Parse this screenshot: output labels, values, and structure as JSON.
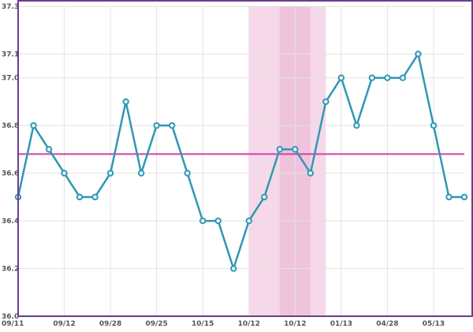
{
  "chart_data": {
    "type": "line",
    "title": "",
    "xlabel": "",
    "ylabel": "",
    "ylim": [
      36.0,
      37.3
    ],
    "yticks": [
      "36.0",
      "36.2",
      "36.4",
      "36.6",
      "36.8",
      "37.0",
      "37.1",
      "37.3"
    ],
    "ytick_values": [
      36.0,
      36.2,
      36.4,
      36.6,
      36.8,
      37.0,
      37.1,
      37.3
    ],
    "xticks": [
      {
        "label": "09/11",
        "index": 0
      },
      {
        "label": "09/12",
        "index": 3
      },
      {
        "label": "09/28",
        "index": 6
      },
      {
        "label": "09/25",
        "index": 9
      },
      {
        "label": "10/15",
        "index": 12
      },
      {
        "label": "10/12",
        "index": 15
      },
      {
        "label": "10/12",
        "index": 18
      },
      {
        "label": "01/13",
        "index": 21
      },
      {
        "label": "04/28",
        "index": 24
      },
      {
        "label": "05/13",
        "index": 27
      }
    ],
    "grid": true,
    "series": [
      {
        "color": "#2f97b5",
        "values": [
          36.5,
          36.8,
          36.7,
          36.6,
          36.5,
          36.5,
          36.6,
          36.9,
          36.6,
          36.8,
          36.8,
          36.6,
          36.4,
          36.4,
          36.2,
          36.4,
          36.5,
          36.7,
          36.7,
          36.6,
          36.9,
          37.0,
          36.8,
          37.0,
          37.0,
          37.0,
          37.1,
          36.8,
          36.5,
          36.5
        ]
      }
    ],
    "reference_line": {
      "value": 36.68,
      "color": "#d63fa3"
    },
    "shaded_bands": [
      {
        "from": 15,
        "to": 20,
        "color": "#f5d9e8"
      },
      {
        "from": 17,
        "to": 19,
        "color": "#efc3dc"
      }
    ],
    "frame_color": "#6a3d8f"
  }
}
